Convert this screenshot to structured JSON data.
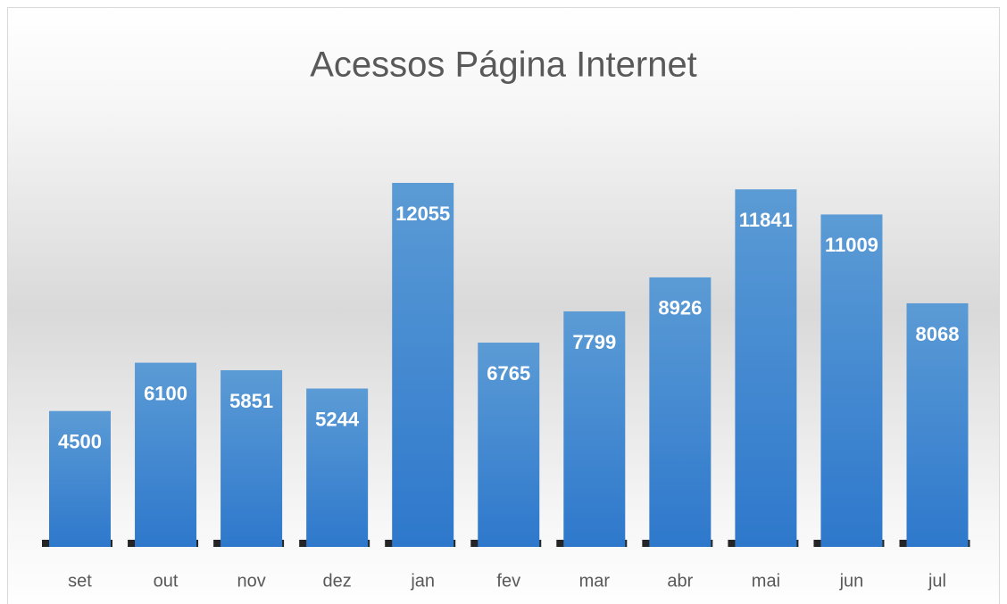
{
  "chart_data": {
    "type": "bar",
    "title": "Acessos Página Internet",
    "categories": [
      "set",
      "out",
      "nov",
      "dez",
      "jan",
      "fev",
      "mar",
      "abr",
      "mai",
      "jun",
      "jul"
    ],
    "values": [
      4500,
      6100,
      5851,
      5244,
      12055,
      6765,
      7799,
      8926,
      11841,
      11009,
      8068
    ],
    "color": "#4a8ad3"
  }
}
